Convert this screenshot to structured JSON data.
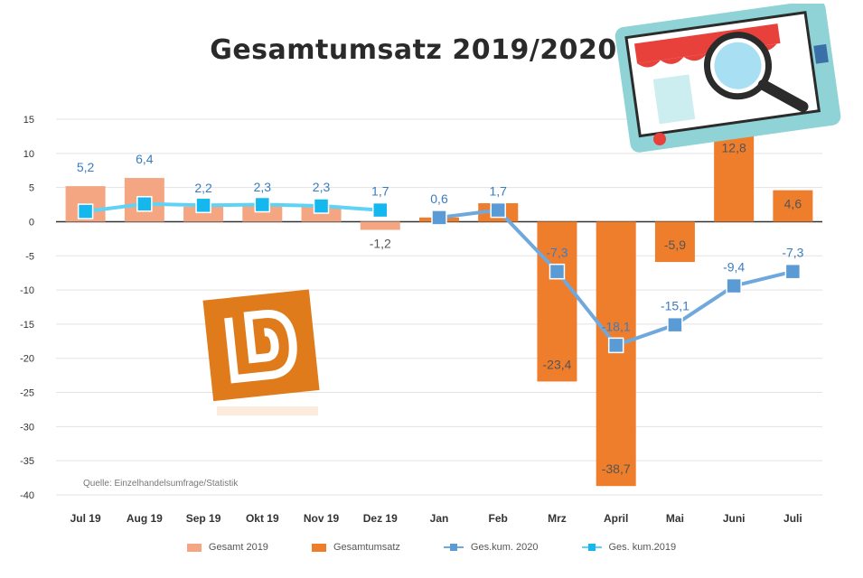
{
  "title": "Gesamtumsatz 2019/2020",
  "source": "Quelle: Einzelhandelsumfrage/Statistik",
  "colors": {
    "bar_2019": "#f4a582",
    "bar_total": "#ee7d2c",
    "line_2020": "#6fa8dc",
    "line_2020_marker": "#5b9bd5",
    "line_2019": "#5fd3f5",
    "line_2019_marker": "#14b8ef",
    "grid": "#e3e3e3",
    "axis_text": "#333333",
    "label_blue": "#3a7cc0",
    "label_dark": "#555555",
    "logo": "#e07b1c"
  },
  "chart_data": {
    "type": "bar",
    "title": "Gesamtumsatz 2019/2020",
    "categories": [
      "Jul 19",
      "Aug 19",
      "Sep 19",
      "Okt 19",
      "Nov 19",
      "Dez 19",
      "Jan",
      "Feb",
      "Mrz",
      "April",
      "Mai",
      "Juni",
      "Juli"
    ],
    "ylim": [
      -40,
      15
    ],
    "yticks": [
      15,
      10,
      5,
      0,
      -5,
      -10,
      -15,
      -20,
      -25,
      -30,
      -35,
      -40
    ],
    "grid": true,
    "legend_position": "bottom",
    "series": [
      {
        "name": "Gesamt 2019",
        "type": "bar",
        "values": [
          5.2,
          6.4,
          2.2,
          2.3,
          2.3,
          -1.2,
          0.6,
          1.7,
          null,
          null,
          null,
          null,
          null
        ]
      },
      {
        "name": "Gesamtumsatz",
        "type": "bar",
        "values": [
          null,
          null,
          null,
          null,
          null,
          null,
          0.6,
          2.7,
          -23.4,
          -38.7,
          -5.9,
          12.8,
          4.6
        ]
      },
      {
        "name": "Ges.kum. 2020",
        "type": "line",
        "values": [
          null,
          null,
          null,
          null,
          null,
          null,
          0.6,
          1.7,
          -7.3,
          -18.1,
          -15.1,
          -9.4,
          -7.3
        ]
      },
      {
        "name": "Ges. kum.2019",
        "type": "line",
        "values": [
          1.5,
          2.6,
          2.4,
          2.5,
          2.3,
          1.7,
          null,
          null,
          null,
          null,
          null,
          null,
          null
        ]
      }
    ],
    "bar_labels": [
      {
        "index": 0,
        "value": "5,2",
        "color": "blue"
      },
      {
        "index": 1,
        "value": "6,4",
        "color": "blue"
      },
      {
        "index": 2,
        "value": "2,2",
        "color": "blue"
      },
      {
        "index": 3,
        "value": "2,3",
        "color": "blue"
      },
      {
        "index": 4,
        "value": "2,3",
        "color": "blue"
      },
      {
        "index": 5,
        "value": "1,7",
        "color": "blue"
      },
      {
        "index": 5,
        "value": "-1,2",
        "color": "dark"
      },
      {
        "index": 6,
        "value": "0,6",
        "color": "blue"
      },
      {
        "index": 7,
        "value": "1,7",
        "color": "blue"
      },
      {
        "index": 8,
        "value": "-7,3",
        "color": "blue"
      },
      {
        "index": 8,
        "value": "-23,4",
        "color": "dark"
      },
      {
        "index": 9,
        "value": "-18,1",
        "color": "blue"
      },
      {
        "index": 9,
        "value": "-38,7",
        "color": "dark"
      },
      {
        "index": 10,
        "value": "-15,1",
        "color": "blue"
      },
      {
        "index": 10,
        "value": "-5,9",
        "color": "dark"
      },
      {
        "index": 11,
        "value": "-9,4",
        "color": "blue"
      },
      {
        "index": 11,
        "value": "12,8",
        "color": "dark"
      },
      {
        "index": 12,
        "value": "-7,3",
        "color": "blue"
      },
      {
        "index": 12,
        "value": "4,6",
        "color": "dark"
      }
    ]
  }
}
